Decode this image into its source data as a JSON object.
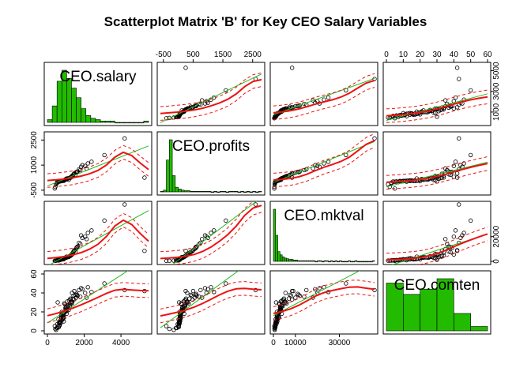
{
  "chart_data": {
    "type": "scatter",
    "title": "Scatterplot Matrix 'B' for Key CEO Salary Variables",
    "variables": [
      "CEO.salary",
      "CEO.profits",
      "CEO.mktval",
      "CEO.comten"
    ],
    "colors": {
      "points": "#000000",
      "linear_fit": "#22bb22",
      "smooth": "#ee1111",
      "histogram": "#22bb00"
    },
    "axis_ticks": {
      "CEO.salary": [
        0,
        2000,
        4000
      ],
      "CEO.salary_right": [
        1000,
        3000,
        5000
      ],
      "CEO.profits_top": [
        -500,
        500,
        1500,
        2500
      ],
      "CEO.profits_left": [
        -500,
        1000,
        2500
      ],
      "CEO.mktval_bottom": [
        0,
        10000,
        30000
      ],
      "CEO.mktval_right": [
        0,
        20000
      ],
      "CEO.comten_top": [
        0,
        10,
        20,
        30,
        40,
        50,
        60
      ],
      "CEO.comten_left": [
        0,
        20,
        40,
        60
      ]
    },
    "ranges": {
      "CEO.salary": [
        0,
        5500
      ],
      "CEO.profits": [
        -600,
        2800
      ],
      "CEO.mktval": [
        0,
        46000
      ],
      "CEO.comten": [
        0,
        60
      ]
    },
    "histograms": {
      "CEO.salary": {
        "bin_width": 250,
        "counts": [
          2,
          12,
          30,
          38,
          32,
          25,
          18,
          10,
          5,
          3,
          2,
          1,
          1,
          1,
          0,
          0,
          0,
          0,
          0,
          0,
          1
        ]
      },
      "CEO.profits": {
        "bin_width": 100,
        "counts": [
          1,
          3,
          55,
          90,
          28,
          8,
          5,
          3,
          2,
          2,
          1,
          1,
          1,
          1,
          1,
          1,
          1,
          0,
          1,
          0,
          1,
          1,
          0,
          1,
          1,
          1,
          0,
          1,
          0,
          1,
          0,
          1,
          0,
          1
        ]
      },
      "CEO.mktval": {
        "bin_width": 1000,
        "counts": [
          80,
          40,
          15,
          10,
          7,
          5,
          4,
          3,
          3,
          2,
          2,
          1,
          1,
          1,
          1,
          1,
          1,
          1,
          1,
          0,
          1,
          1,
          0,
          1,
          1,
          0,
          1,
          0,
          1,
          0,
          1,
          0,
          0,
          0,
          1,
          0,
          0,
          1,
          0,
          0,
          0,
          0,
          0,
          0,
          0,
          1
        ]
      },
      "CEO.comten": {
        "bin_width": 10,
        "counts": [
          55,
          42,
          48,
          60,
          20,
          5
        ]
      }
    },
    "data": {
      "CEO.salary": [
        1160,
        890,
        400,
        560,
        2130,
        720,
        830,
        1340,
        1020,
        1040,
        510,
        600,
        950,
        1460,
        780,
        660,
        1260,
        1520,
        1830,
        430,
        1210,
        900,
        650,
        1080,
        760,
        980,
        1790,
        2400,
        620,
        1330,
        710,
        870,
        1110,
        1580,
        530,
        740,
        1000,
        1900,
        850,
        1420,
        3100,
        1250,
        470,
        1060,
        690,
        920,
        580,
        1180,
        2050,
        810,
        5280,
        1350,
        750,
        990,
        1640,
        640,
        1120,
        880,
        1450,
        700,
        1300,
        1720,
        540,
        960,
        1230,
        830,
        1560,
        4200,
        920,
        670,
        1100,
        790,
        1390,
        610,
        2200,
        1010,
        770,
        1280,
        860,
        1610
      ],
      "CEO.profits": [
        120,
        60,
        -400,
        30,
        800,
        50,
        70,
        300,
        150,
        200,
        -80,
        10,
        110,
        500,
        40,
        20,
        250,
        420,
        900,
        -300,
        230,
        90,
        25,
        180,
        55,
        130,
        700,
        1200,
        15,
        350,
        45,
        80,
        200,
        600,
        -20,
        60,
        160,
        1000,
        75,
        450,
        1600,
        260,
        -150,
        170,
        35,
        100,
        5,
        220,
        950,
        65,
        250,
        320,
        50,
        140,
        620,
        18,
        210,
        85,
        480,
        35,
        300,
        750,
        -50,
        120,
        240,
        70,
        550,
        2600,
        95,
        25,
        190,
        60,
        380,
        10,
        1100,
        150,
        55,
        290,
        80,
        580
      ],
      "CEO.mktval": [
        3500,
        1800,
        400,
        1200,
        18000,
        1500,
        2200,
        5500,
        3000,
        3800,
        700,
        900,
        2800,
        9000,
        1600,
        1100,
        4500,
        7500,
        21000,
        500,
        4200,
        2600,
        1000,
        3400,
        1700,
        3100,
        14000,
        25000,
        800,
        6000,
        1400,
        2400,
        3600,
        11000,
        850,
        1700,
        3200,
        19000,
        2100,
        8000,
        33000,
        4800,
        600,
        3300,
        1300,
        2700,
        900,
        4000,
        20000,
        1900,
        8500,
        5700,
        1500,
        2900,
        12000,
        950,
        3700,
        2300,
        8500,
        1300,
        5200,
        15000,
        750,
        2800,
        4400,
        1800,
        10000,
        46000,
        2500,
        1000,
        3500,
        1600,
        7000,
        850,
        23000,
        3000,
        1500,
        5000,
        2200,
        11500
      ],
      "CEO.comten": [
        22,
        10,
        5,
        30,
        35,
        8,
        15,
        40,
        25,
        18,
        3,
        12,
        28,
        42,
        20,
        6,
        33,
        38,
        45,
        2,
        26,
        14,
        9,
        31,
        17,
        24,
        36,
        41,
        4,
        29,
        11,
        19,
        27,
        39,
        7,
        16,
        23,
        44,
        13,
        37,
        50,
        34,
        1,
        21,
        10,
        29,
        5,
        32,
        40,
        18,
        42,
        30,
        14,
        22,
        37,
        8,
        26,
        15,
        33,
        9,
        31,
        43,
        3,
        20,
        28,
        12,
        35,
        43,
        19,
        6,
        25,
        16,
        34,
        4,
        46,
        21,
        11,
        30,
        17,
        38
      ],
      "CEO.comten_vs_salary": [
        22,
        10,
        5,
        30,
        35,
        8,
        15,
        40,
        25,
        18,
        3,
        12,
        28,
        42,
        20,
        6,
        33,
        38,
        45,
        2,
        26,
        14,
        9,
        31,
        17,
        24,
        36,
        41,
        4,
        29,
        11,
        19,
        27,
        39,
        7,
        16,
        23,
        44,
        13,
        37,
        50,
        34,
        1,
        21,
        10,
        29,
        5,
        32,
        40,
        18,
        42,
        30,
        14,
        22,
        37,
        8,
        26,
        15,
        33,
        9,
        31,
        43,
        3,
        20,
        28,
        12,
        35,
        43,
        19,
        6,
        25,
        16,
        34,
        4,
        46,
        21,
        11,
        30,
        17,
        38
      ]
    }
  }
}
